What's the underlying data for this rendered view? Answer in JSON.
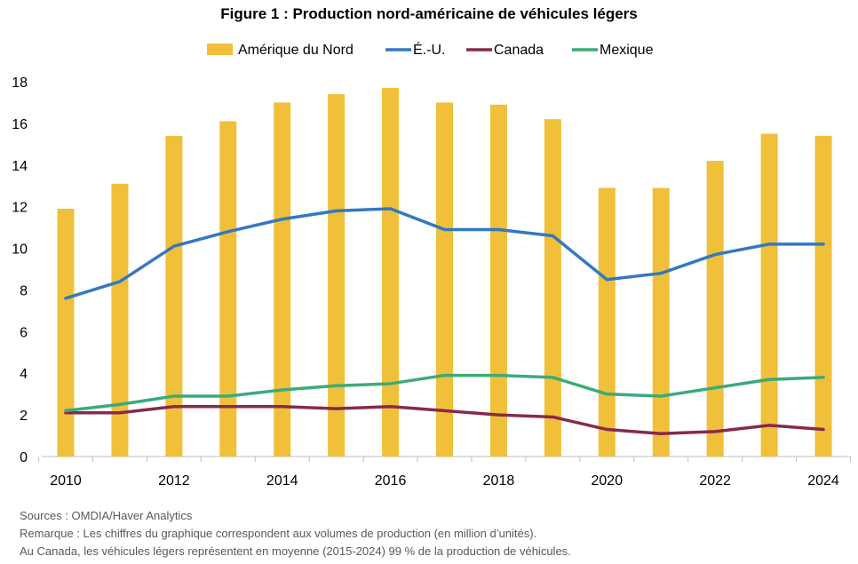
{
  "chart_data": {
    "type": "bar+line",
    "title": "Figure 1 : Production nord-américaine de véhicules légers",
    "categories": [
      "2010",
      "2011",
      "2012",
      "2013",
      "2014",
      "2015",
      "2016",
      "2017",
      "2018",
      "2019",
      "2020",
      "2021",
      "2022",
      "2023",
      "2024"
    ],
    "x_tick_labels": [
      "2010",
      "2012",
      "2014",
      "2016",
      "2018",
      "2020",
      "2022",
      "2024"
    ],
    "ylim": [
      0,
      18
    ],
    "y_ticks": [
      0,
      2,
      4,
      6,
      8,
      10,
      12,
      14,
      16,
      18
    ],
    "grid": false,
    "legend_position": "top",
    "series": [
      {
        "name": "Amérique du Nord",
        "type": "bar",
        "color": "#F0C03A",
        "values": [
          11.9,
          13.1,
          15.4,
          16.1,
          17.0,
          17.4,
          17.7,
          17.0,
          16.9,
          16.2,
          12.9,
          12.9,
          14.2,
          15.5,
          15.4
        ]
      },
      {
        "name": "É.-U.",
        "type": "line",
        "color": "#3478C0",
        "values": [
          7.6,
          8.4,
          10.1,
          10.8,
          11.4,
          11.8,
          11.9,
          10.9,
          10.9,
          10.6,
          8.5,
          8.8,
          9.7,
          10.2,
          10.2
        ]
      },
      {
        "name": "Canada",
        "type": "line",
        "color": "#862A4E",
        "values": [
          2.1,
          2.1,
          2.4,
          2.4,
          2.4,
          2.3,
          2.4,
          2.2,
          2.0,
          1.9,
          1.3,
          1.1,
          1.2,
          1.5,
          1.3
        ]
      },
      {
        "name": "Mexique",
        "type": "line",
        "color": "#3DAA7A",
        "values": [
          2.2,
          2.5,
          2.9,
          2.9,
          3.2,
          3.4,
          3.5,
          3.9,
          3.9,
          3.8,
          3.0,
          2.9,
          3.3,
          3.7,
          3.8
        ]
      }
    ]
  },
  "notes": {
    "source": "Sources : OMDIA/Haver Analytics",
    "remark": "Remarque  :  Les chiffres du graphique correspondent aux volumes de production (en million d’unités).",
    "canada": "Au Canada, les véhicules légers représentent en moyenne (2015-2024) 99 % de la production de véhicules."
  }
}
